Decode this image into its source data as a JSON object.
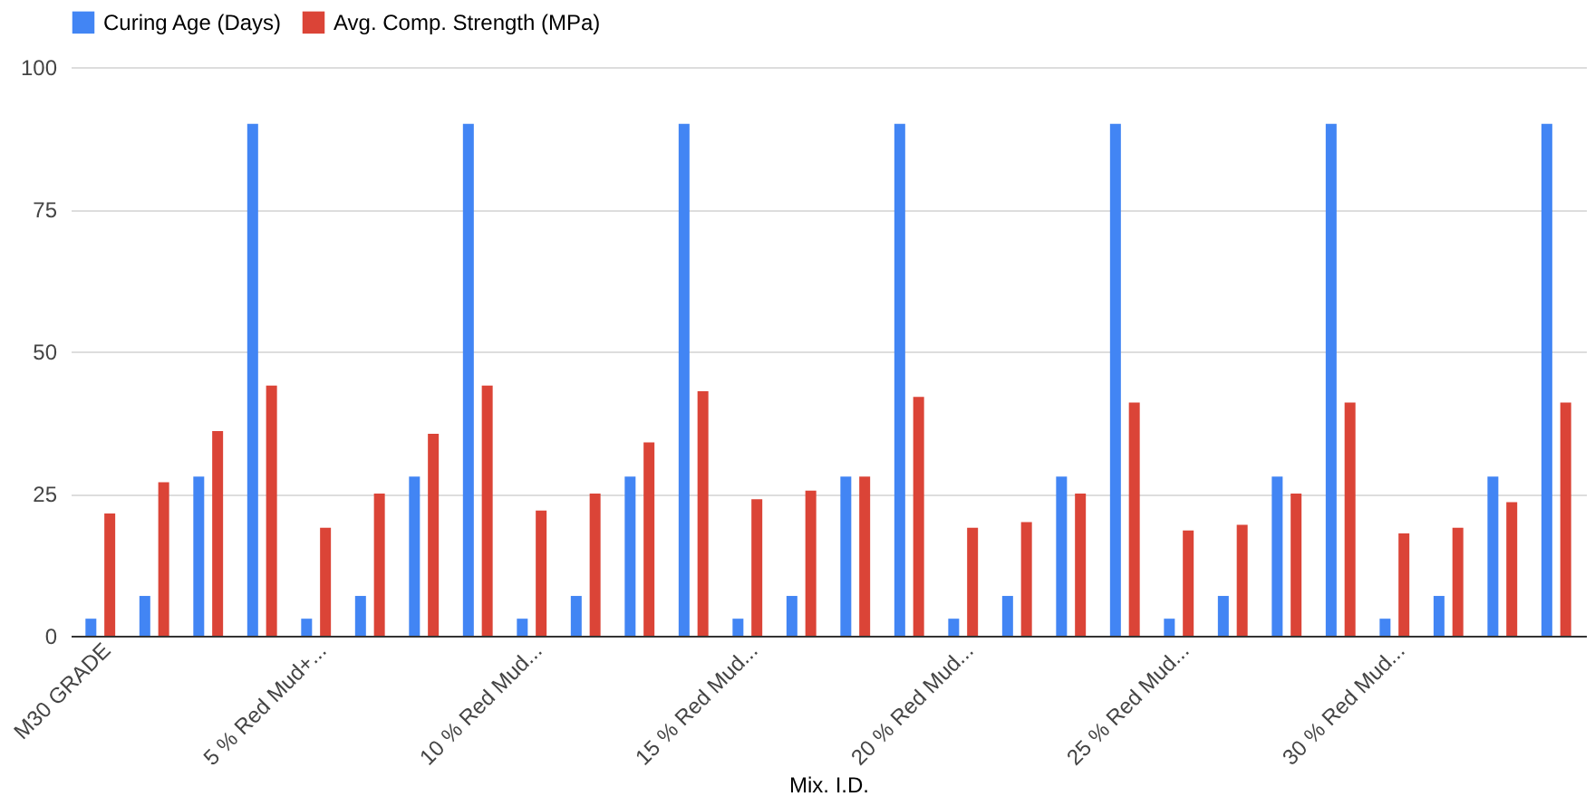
{
  "chart_data": {
    "type": "bar",
    "xlabel": "Mix. I.D.",
    "categories": [
      "M30 GRADE",
      null,
      null,
      null,
      "5 % Red Mud+...",
      null,
      null,
      null,
      "10 % Red Mud...",
      null,
      null,
      null,
      "15 % Red Mud...",
      null,
      null,
      null,
      "20 % Red Mud...",
      null,
      null,
      null,
      "25 % Red Mud...",
      null,
      null,
      null,
      "30 % Red Mud...",
      null,
      null,
      null
    ],
    "series": [
      {
        "name": "Curing Age (Days)",
        "color": "#4285f4",
        "values": [
          3,
          7,
          28,
          90,
          3,
          7,
          28,
          90,
          3,
          7,
          28,
          90,
          3,
          7,
          28,
          90,
          3,
          7,
          28,
          90,
          3,
          7,
          28,
          90,
          3,
          7,
          28,
          90
        ]
      },
      {
        "name": "Avg. Comp. Strength (MPa)",
        "color": "#db4437",
        "values": [
          21.5,
          27,
          36,
          44,
          19,
          25,
          35.5,
          44,
          22,
          25,
          34,
          43,
          24,
          25.5,
          28,
          42,
          19,
          20,
          25,
          41,
          18.5,
          19.5,
          25,
          41,
          18,
          19,
          23.5,
          41
        ]
      }
    ],
    "ylim": [
      0,
      100
    ],
    "yticks": [
      0,
      25,
      50,
      75,
      100
    ],
    "grid": "y",
    "legend": "top"
  }
}
